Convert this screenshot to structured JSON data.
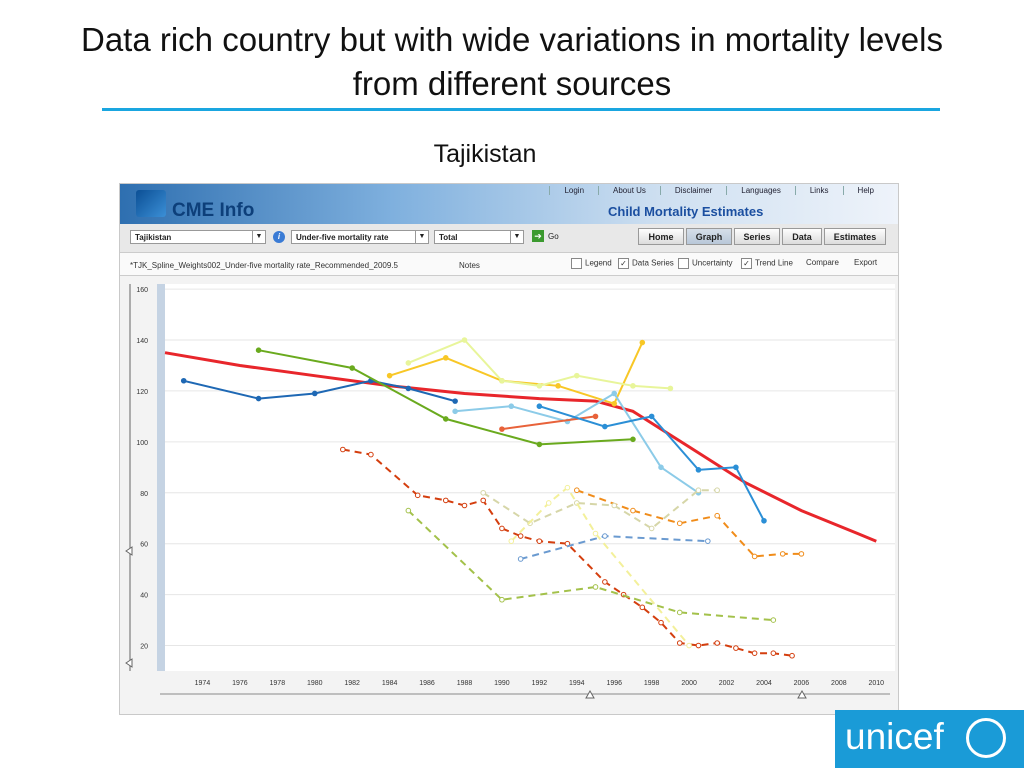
{
  "slide": {
    "title": "Data rich country but with wide variations in mortality levels from different sources",
    "subtitle": "Tajikistan",
    "logo_text": "unicef",
    "accent_color": "#1aa6e0"
  },
  "app": {
    "logo": "CME Info",
    "banner_title": "Child Mortality Estimates",
    "top_links": [
      "Login",
      "About Us",
      "Disclaimer",
      "Languages",
      "Links",
      "Help"
    ],
    "toolbar": {
      "country": "Tajikistan",
      "indicator": "Under-five mortality rate",
      "sex": "Total",
      "go_label": "Go",
      "nav": [
        "Home",
        "Graph",
        "Series",
        "Data",
        "Estimates"
      ],
      "active_nav": "Graph"
    },
    "options": {
      "file_label": "*TJK_Spline_Weights002_Under-five mortality rate_Recommended_2009.5",
      "notes": "Notes",
      "legend": "Legend",
      "data_series": "Data Series",
      "uncertainty": "Uncertainty",
      "trend_line": "Trend Line",
      "compare": "Compare",
      "export": "Export",
      "checked": {
        "legend": false,
        "data_series": true,
        "uncertainty": false,
        "trend_line": true
      }
    }
  },
  "chart_data": {
    "type": "line",
    "xlim": [
      1972,
      2011
    ],
    "ylim": [
      10,
      162
    ],
    "xticks": [
      1974,
      1976,
      1978,
      1980,
      1982,
      1984,
      1986,
      1988,
      1990,
      1992,
      1994,
      1996,
      1998,
      2000,
      2002,
      2004,
      2006,
      2008,
      2010
    ],
    "yticks": [
      20,
      40,
      60,
      80,
      100,
      120,
      140,
      160
    ],
    "grid": true,
    "series": [
      {
        "color": "#e8262b",
        "style": "trend",
        "x": [
          1972,
          1976,
          1980,
          1984,
          1988,
          1992,
          1995,
          1997,
          2000,
          2003,
          2006,
          2009,
          2010
        ],
        "y": [
          135,
          130,
          126,
          122,
          119,
          117,
          116,
          112,
          98,
          84,
          73,
          64,
          61
        ]
      },
      {
        "color": "#1e68b4",
        "style": "solid",
        "x": [
          1973,
          1977,
          1980,
          1983,
          1985,
          1987.5
        ],
        "y": [
          124,
          117,
          119,
          124,
          121,
          116
        ]
      },
      {
        "color": "#6aaa1e",
        "style": "solid",
        "x": [
          1977,
          1982,
          1987,
          1992,
          1997
        ],
        "y": [
          136,
          129,
          109,
          99,
          101
        ]
      },
      {
        "color": "#f8c726",
        "style": "solid",
        "x": [
          1984,
          1987,
          1990,
          1993,
          1996,
          1997.5
        ],
        "y": [
          126,
          133,
          124,
          122,
          115,
          139
        ]
      },
      {
        "color": "#e8f59a",
        "style": "solid",
        "x": [
          1985,
          1988,
          1990,
          1992,
          1994,
          1997,
          1999
        ],
        "y": [
          131,
          140,
          124,
          122,
          126,
          122,
          121
        ]
      },
      {
        "color": "#8ccbe8",
        "style": "solid",
        "x": [
          1987.5,
          1990.5,
          1993.5,
          1996,
          1998.5,
          2000.5
        ],
        "y": [
          112,
          114,
          108,
          119,
          90,
          80
        ]
      },
      {
        "color": "#e8623a",
        "style": "solid",
        "x": [
          1990,
          1995
        ],
        "y": [
          105,
          110
        ]
      },
      {
        "color": "#2b8fd6",
        "style": "solid",
        "x": [
          1992,
          1995.5,
          1998,
          2000.5,
          2002.5,
          2004
        ],
        "y": [
          114,
          106,
          110,
          89,
          90,
          69
        ]
      },
      {
        "color": "#d43e0e",
        "style": "dashed",
        "x": [
          1981.5,
          1983,
          1985.5,
          1987,
          1988,
          1989,
          1990,
          1991,
          1992,
          1993.5,
          1995.5,
          1996.5,
          1997.5,
          1998.5,
          1999.5,
          2000.5,
          2001.5,
          2002.5,
          2003.5,
          2004.5,
          2005.5
        ],
        "y": [
          97,
          95,
          79,
          77,
          75,
          77,
          66,
          63,
          61,
          60,
          45,
          40,
          35,
          29,
          21,
          20,
          21,
          19,
          17,
          17,
          16
        ]
      },
      {
        "color": "#f08c1a",
        "style": "dashed",
        "x": [
          1994,
          1997,
          1999.5,
          2001.5,
          2003.5,
          2005,
          2006
        ],
        "y": [
          81,
          73,
          68,
          71,
          55,
          56,
          56
        ]
      },
      {
        "color": "#a3c14a",
        "style": "dashed",
        "x": [
          1985,
          1990,
          1995,
          1999.5,
          2004.5
        ],
        "y": [
          73,
          38,
          43,
          33,
          30
        ]
      },
      {
        "color": "#d6d6a8",
        "style": "dashed",
        "x": [
          1989,
          1991.5,
          1994,
          1996,
          1998,
          2000.5,
          2001.5
        ],
        "y": [
          80,
          68,
          76,
          75,
          66,
          81,
          81
        ]
      },
      {
        "color": "#f3f09a",
        "style": "dashed",
        "x": [
          1990.5,
          1992.5,
          1993.5,
          1995,
          2000
        ],
        "y": [
          61,
          76,
          82,
          64,
          20
        ]
      },
      {
        "color": "#6a9ad0",
        "style": "dashed",
        "x": [
          1991,
          1995.5,
          2001
        ],
        "y": [
          54,
          63,
          61
        ]
      }
    ]
  }
}
